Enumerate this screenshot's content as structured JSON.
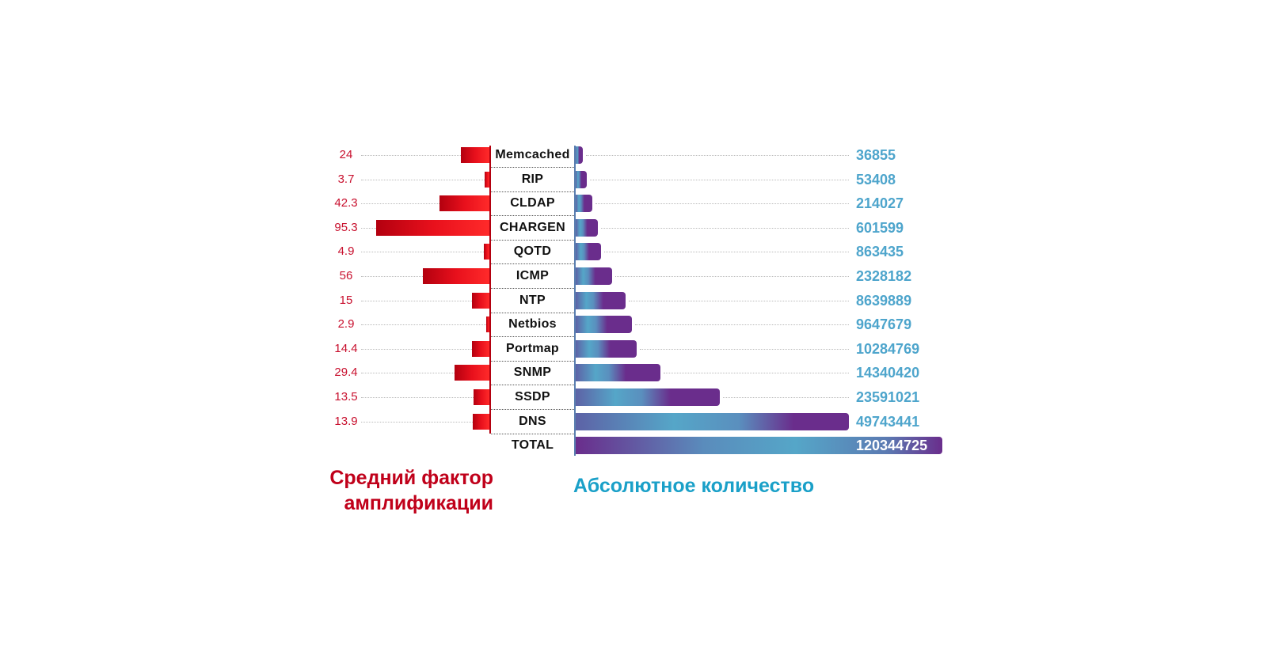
{
  "chart_data": {
    "type": "bar",
    "orientation": "horizontal-butterfly",
    "categories": [
      "Memcached",
      "RIP",
      "CLDAP",
      "CHARGEN",
      "QOTD",
      "ICMP",
      "NTP",
      "Netbios",
      "Portmap",
      "SNMP",
      "SSDP",
      "DNS",
      "TOTAL"
    ],
    "series": [
      {
        "name": "Средний фактор амплификации",
        "side": "left",
        "color": "#e8101c",
        "values": [
          24,
          3.7,
          42.3,
          95.3,
          4.9,
          56,
          15,
          2.9,
          14.4,
          29.4,
          13.5,
          13.9,
          null
        ],
        "labels": [
          "24",
          "3.7",
          "42.3",
          "95.3",
          "4.9",
          "56",
          "15",
          "2.9",
          "14.4",
          "29.4",
          "13.5",
          "13.9",
          ""
        ]
      },
      {
        "name": "Абсолютное количество",
        "side": "right",
        "colors": [
          "#6a2d8c",
          "#55a6c8"
        ],
        "values": [
          36855,
          53408,
          214027,
          601599,
          863435,
          2328182,
          8639889,
          9647679,
          10284769,
          14340420,
          23591021,
          49743441,
          120344725
        ],
        "labels": [
          "36855",
          "53408",
          "214027",
          "601599",
          "863435",
          "2328182",
          "8639889",
          "9647679",
          "10284769",
          "14340420",
          "23591021",
          "49743441",
          "120344725"
        ]
      }
    ],
    "title_left": "Средний фактор амплификации",
    "title_left_lines": [
      "Средний фактор",
      "амплификации"
    ],
    "title_right": "Абсолютное количество",
    "grid": false,
    "legend": "bottom"
  }
}
